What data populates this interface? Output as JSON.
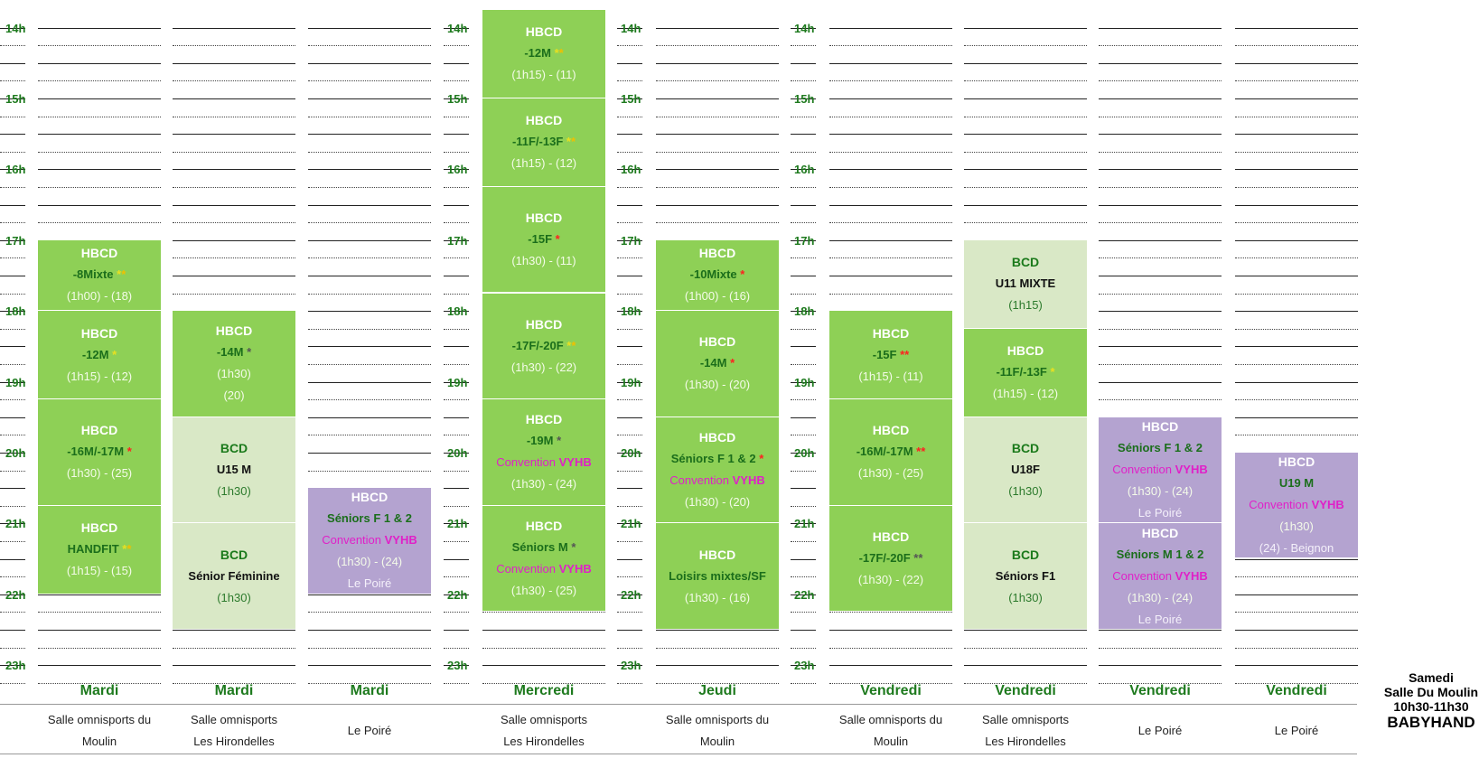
{
  "time_labels": [
    "14h",
    "15h",
    "16h",
    "17h",
    "18h",
    "19h",
    "20h",
    "21h",
    "22h",
    "23h"
  ],
  "columns": [
    {
      "day": "Mardi",
      "venue": [
        "Salle omnisports du",
        "Moulin"
      ]
    },
    {
      "day": "Mardi",
      "venue": [
        "Salle omnisports",
        "Les Hirondelles"
      ]
    },
    {
      "day": "Mardi",
      "venue": [
        "Le Poiré"
      ]
    },
    {
      "day": "Mercredi",
      "venue": [
        "Salle omnisports",
        "Les Hirondelles"
      ]
    },
    {
      "day": "Jeudi",
      "venue": [
        "Salle omnisports du",
        "Moulin"
      ]
    },
    {
      "day": "Vendredi",
      "venue": [
        "Salle omnisports du",
        "Moulin"
      ]
    },
    {
      "day": "Vendredi",
      "venue": [
        "Salle omnisports",
        "Les Hirondelles"
      ]
    },
    {
      "day": "Vendredi",
      "venue": [
        "Le Poiré"
      ]
    },
    {
      "day": "Vendredi",
      "venue": [
        "Le Poiré"
      ]
    }
  ],
  "blocks": [
    {
      "col": 0,
      "start": 17,
      "end": 18,
      "kind": "hbcd",
      "club": "HBCD",
      "group": "-8Mixte",
      "stars": [
        {
          "s": "*",
          "c": "#e8e020"
        },
        {
          "s": "*",
          "c": "#f0c000"
        }
      ],
      "lines": [
        "(1h00) - (18)"
      ]
    },
    {
      "col": 0,
      "start": 18,
      "end": 19.25,
      "kind": "hbcd",
      "club": "HBCD",
      "group": "-12M",
      "stars": [
        {
          "s": "*",
          "c": "#e8e020"
        }
      ],
      "lines": [
        "(1h15) - (12)"
      ]
    },
    {
      "col": 0,
      "start": 19.25,
      "end": 20.75,
      "kind": "hbcd",
      "club": "HBCD",
      "group": "-16M/-17M",
      "stars": [
        {
          "s": "*",
          "c": "#ff2020"
        }
      ],
      "lines": [
        "(1h30) - (25)"
      ]
    },
    {
      "col": 0,
      "start": 20.75,
      "end": 22,
      "kind": "hbcd",
      "club": "HBCD",
      "group": "HANDFIT",
      "stars": [
        {
          "s": "*",
          "c": "#e8e020"
        },
        {
          "s": "*",
          "c": "#f0c000"
        }
      ],
      "lines": [
        "(1h15) - (15)"
      ]
    },
    {
      "col": 1,
      "start": 18,
      "end": 19.5,
      "kind": "hbcd",
      "club": "HBCD",
      "group": "-14M",
      "stars": [
        {
          "s": "*",
          "c": "#555555"
        }
      ],
      "lines": [
        "(1h30)",
        "(20)"
      ]
    },
    {
      "col": 1,
      "start": 19.5,
      "end": 21,
      "kind": "bcd",
      "club": "BCD",
      "group": "U15 M",
      "stars": [],
      "lines": [
        "(1h30)"
      ]
    },
    {
      "col": 1,
      "start": 21,
      "end": 22.5,
      "kind": "bcd",
      "club": "BCD",
      "group": "Sénior Féminine",
      "stars": [],
      "lines": [
        "(1h30)"
      ]
    },
    {
      "col": 2,
      "start": 20.5,
      "end": 22,
      "kind": "vyhb",
      "club": "HBCD",
      "group": "Séniors F 1 & 2",
      "stars": [],
      "conv": true,
      "lines": [
        "(1h30) - (24)",
        "Le Poiré"
      ]
    },
    {
      "col": 3,
      "start": 13.75,
      "end": 15,
      "kind": "hbcd",
      "club": "HBCD",
      "group": "-12M",
      "stars": [
        {
          "s": "*",
          "c": "#e8e020"
        },
        {
          "s": "*",
          "c": "#f0c000"
        }
      ],
      "lines": [
        "(1h15) - (11)"
      ]
    },
    {
      "col": 3,
      "start": 15,
      "end": 16.25,
      "kind": "hbcd",
      "club": "HBCD",
      "group": "-11F/-13F",
      "stars": [
        {
          "s": "*",
          "c": "#e8e020"
        },
        {
          "s": "*",
          "c": "#f0c000"
        }
      ],
      "lines": [
        "(1h15) - (12)"
      ]
    },
    {
      "col": 3,
      "start": 16.25,
      "end": 17.75,
      "kind": "hbcd",
      "club": "HBCD",
      "group": "-15F",
      "stars": [
        {
          "s": "*",
          "c": "#ff2020"
        }
      ],
      "lines": [
        "(1h30) - (11)"
      ]
    },
    {
      "col": 3,
      "start": 17.75,
      "end": 19.25,
      "kind": "hbcd",
      "club": "HBCD",
      "group": "-17F/-20F",
      "stars": [
        {
          "s": "*",
          "c": "#e8e020"
        },
        {
          "s": "*",
          "c": "#f0c000"
        }
      ],
      "lines": [
        "(1h30) - (22)"
      ]
    },
    {
      "col": 3,
      "start": 19.25,
      "end": 20.75,
      "kind": "hbcd",
      "club": "HBCD",
      "group": "-19M",
      "stars": [
        {
          "s": "*",
          "c": "#555555"
        }
      ],
      "conv": true,
      "lines": [
        "(1h30) - (24)"
      ]
    },
    {
      "col": 3,
      "start": 20.75,
      "end": 22.25,
      "kind": "hbcd",
      "club": "HBCD",
      "group": "Séniors M",
      "stars": [
        {
          "s": "*",
          "c": "#555555"
        }
      ],
      "conv": true,
      "lines": [
        "(1h30) - (25)"
      ]
    },
    {
      "col": 4,
      "start": 17,
      "end": 18,
      "kind": "hbcd",
      "club": "HBCD",
      "group": "-10Mixte",
      "stars": [
        {
          "s": "*",
          "c": "#ff2020"
        }
      ],
      "lines": [
        "(1h00) -  (16)"
      ]
    },
    {
      "col": 4,
      "start": 18,
      "end": 19.5,
      "kind": "hbcd",
      "club": "HBCD",
      "group": "-14M",
      "stars": [
        {
          "s": "*",
          "c": "#ff2020"
        }
      ],
      "lines": [
        "(1h30) - (20)"
      ]
    },
    {
      "col": 4,
      "start": 19.5,
      "end": 21,
      "kind": "hbcd",
      "club": "HBCD",
      "group": "Séniors F 1 & 2",
      "stars": [
        {
          "s": "*",
          "c": "#ff2020"
        }
      ],
      "conv": true,
      "lines": [
        "(1h30) - (20)"
      ]
    },
    {
      "col": 4,
      "start": 21,
      "end": 22.5,
      "kind": "hbcd",
      "club": "HBCD",
      "group": "Loisirs mixtes/SF",
      "stars": [],
      "lines": [
        "(1h30) - (16)"
      ]
    },
    {
      "col": 5,
      "start": 18,
      "end": 19.25,
      "kind": "hbcd",
      "club": "HBCD",
      "group": "-15F",
      "stars": [
        {
          "s": "*",
          "c": "#ff2020"
        },
        {
          "s": "*",
          "c": "#ff2020"
        }
      ],
      "lines": [
        "(1h15) - (11)"
      ]
    },
    {
      "col": 5,
      "start": 19.25,
      "end": 20.75,
      "kind": "hbcd",
      "club": "HBCD",
      "group": "-16M/-17M",
      "stars": [
        {
          "s": "*",
          "c": "#ff2020"
        },
        {
          "s": "*",
          "c": "#ff2020"
        }
      ],
      "lines": [
        "(1h30) - (25)"
      ]
    },
    {
      "col": 5,
      "start": 20.75,
      "end": 22.25,
      "kind": "hbcd",
      "club": "HBCD",
      "group": "-17F/-20F",
      "stars": [
        {
          "s": "*",
          "c": "#555555"
        },
        {
          "s": "*",
          "c": "#555555"
        }
      ],
      "lines": [
        "(1h30) - (22)"
      ]
    },
    {
      "col": 6,
      "start": 17,
      "end": 18.25,
      "kind": "bcd",
      "club": "BCD",
      "group": "U11 MIXTE",
      "stars": [],
      "lines": [
        "(1h15)"
      ]
    },
    {
      "col": 6,
      "start": 18.25,
      "end": 19.5,
      "kind": "hbcd",
      "club": "HBCD",
      "group": "-11F/-13F",
      "stars": [
        {
          "s": "*",
          "c": "#e8e020"
        }
      ],
      "lines": [
        "(1h15) - (12)"
      ]
    },
    {
      "col": 6,
      "start": 19.5,
      "end": 21,
      "kind": "bcd",
      "club": "BCD",
      "group": "U18F",
      "stars": [],
      "lines": [
        "(1h30)"
      ]
    },
    {
      "col": 6,
      "start": 21,
      "end": 22.5,
      "kind": "bcd",
      "club": "BCD",
      "group": "Séniors F1",
      "stars": [],
      "lines": [
        "(1h30)"
      ]
    },
    {
      "col": 7,
      "start": 19.5,
      "end": 21,
      "kind": "vyhb",
      "club": "HBCD",
      "group": "Séniors F 1 & 2",
      "stars": [],
      "conv": true,
      "lines": [
        "(1h30) - (24)",
        "Le Poiré"
      ]
    },
    {
      "col": 7,
      "start": 21,
      "end": 22.5,
      "kind": "vyhb",
      "club": "HBCD",
      "group": "Séniors M 1 & 2",
      "stars": [],
      "conv": true,
      "lines": [
        "(1h30) - (24)",
        "Le Poiré"
      ]
    },
    {
      "col": 8,
      "start": 20,
      "end": 21.5,
      "kind": "vyhb",
      "club": "HBCD",
      "group": "U19 M",
      "stars": [],
      "conv": true,
      "lines": [
        "(1h30)",
        "(24) - Beignon"
      ]
    }
  ],
  "convention": {
    "prefix": "Convention ",
    "name": "VYHB"
  },
  "samedi": {
    "l1": "Samedi",
    "l2": "Salle Du Moulin",
    "l3": "10h30-11h30",
    "l4": "BABYHAND"
  }
}
